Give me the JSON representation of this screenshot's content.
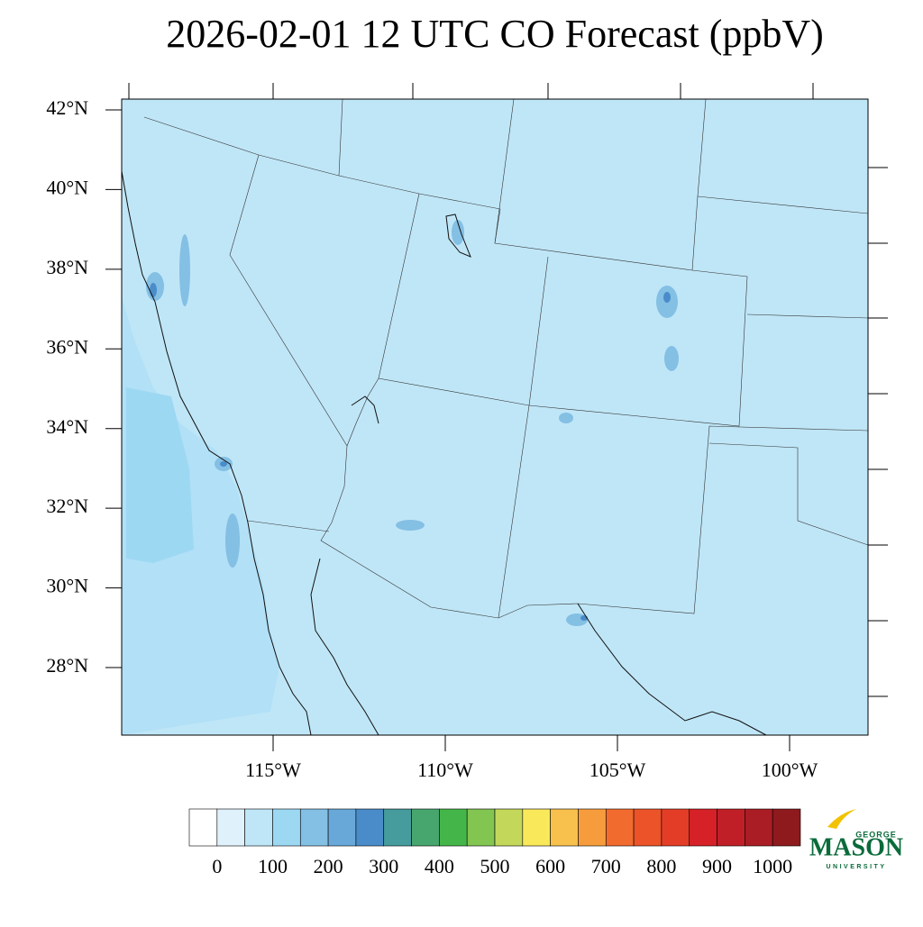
{
  "title": "2026-02-01 12 UTC CO Forecast (ppbV)",
  "map": {
    "latitudes": [
      {
        "value": 42,
        "label": "42°N"
      },
      {
        "value": 40,
        "label": "40°N"
      },
      {
        "value": 38,
        "label": "38°N"
      },
      {
        "value": 36,
        "label": "36°N"
      },
      {
        "value": 34,
        "label": "34°N"
      },
      {
        "value": 32,
        "label": "32°N"
      },
      {
        "value": 30,
        "label": "30°N"
      },
      {
        "value": 28,
        "label": "28°N"
      }
    ],
    "longitudes": [
      {
        "value": -115,
        "label": "115°W"
      },
      {
        "value": -110,
        "label": "110°W"
      },
      {
        "value": -105,
        "label": "105°W"
      },
      {
        "value": -100,
        "label": "100°W"
      }
    ]
  },
  "colorbar": {
    "colors": [
      "#ffffff",
      "#dff1fa",
      "#bfe6f7",
      "#9dd8f3",
      "#84bfe4",
      "#67a8d9",
      "#4a8cc9",
      "#469b9c",
      "#46a66e",
      "#44b649",
      "#82c551",
      "#c3d85a",
      "#f9e85a",
      "#f8c04d",
      "#f79c3d",
      "#f26b2e",
      "#ec5329",
      "#e33d27",
      "#d62128",
      "#c11f27",
      "#aa1d24",
      "#8e1a1d"
    ],
    "ticks": [
      0,
      100,
      200,
      300,
      400,
      500,
      600,
      700,
      800,
      900,
      1000
    ]
  },
  "logo": {
    "top": "GEORGE",
    "main": "MASON",
    "bottom": "UNIVERSITY"
  }
}
